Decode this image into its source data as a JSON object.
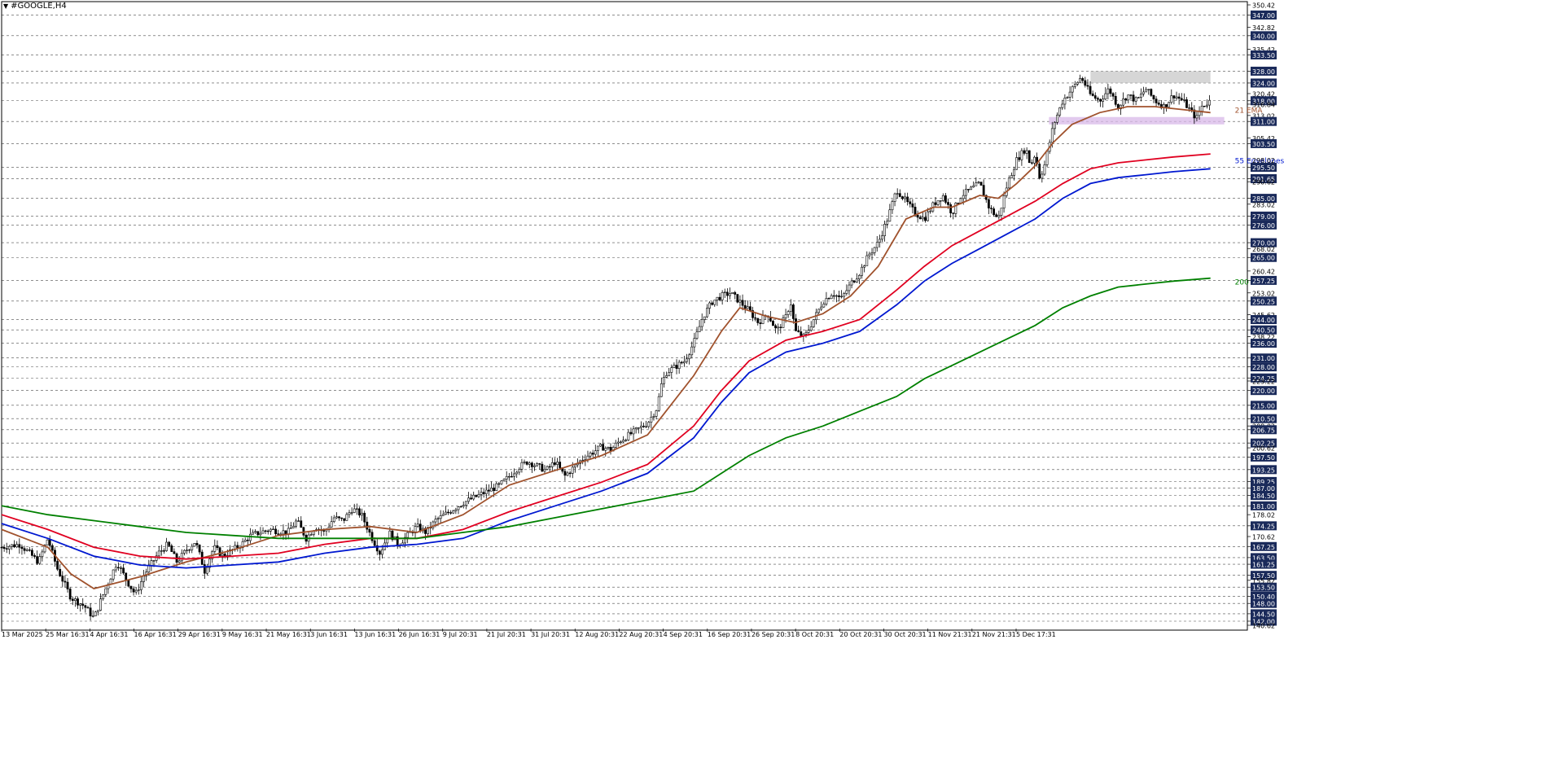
{
  "window": {
    "symbol_title": "#GOOGLE,H4",
    "menu_icon": "triangle-down-icon"
  },
  "colors": {
    "background": "#ffffff",
    "grid": "#000000",
    "candle": "#000000",
    "ema21": "#a0522d",
    "envelope_upper": "#e00020",
    "envelope_lower": "#0018d0",
    "ema200": "#008000",
    "price_tag_bg": "#1a2a5a",
    "price_tag_text": "#ffffff",
    "resistance_zone": "#c8c8c8",
    "support_zone": "#d8b8e8"
  },
  "chart_data": {
    "type": "candlestick",
    "timeframe": "H4",
    "ylim": [
      140.62,
      350.42
    ],
    "price_scale_labels": [
      "350.42",
      "347.00",
      "342.82",
      "340.00",
      "335.42",
      "333.50",
      "328.00",
      "324.00",
      "320.42",
      "318.00",
      "316.84",
      "313.02",
      "311.00",
      "305.42",
      "303.50",
      "298.02",
      "295.50",
      "291.65",
      "290.62",
      "285.00",
      "283.02",
      "279.00",
      "276.00",
      "270.00",
      "268.02",
      "265.00",
      "260.42",
      "257.25",
      "253.02",
      "250.25",
      "245.62",
      "244.00",
      "240.50",
      "238.22",
      "236.00",
      "231.00",
      "228.00",
      "224.25",
      "223.22",
      "220.00",
      "215.00",
      "210.50",
      "208.02",
      "206.75",
      "202.25",
      "200.62",
      "197.50",
      "193.25",
      "189.25",
      "187.00",
      "184.50",
      "181.00",
      "178.02",
      "174.25",
      "170.62",
      "167.25",
      "163.50",
      "161.25",
      "157.50",
      "155.82",
      "153.50",
      "150.40",
      "148.00",
      "144.50",
      "142.00",
      "140.62"
    ],
    "highlighted_levels": [
      347.0,
      340.0,
      333.5,
      328.0,
      324.0,
      318.0,
      311.0,
      303.5,
      295.5,
      291.65,
      285.0,
      279.0,
      276.0,
      270.0,
      265.0,
      257.25,
      250.25,
      244.0,
      240.5,
      236.0,
      231.0,
      228.0,
      224.25,
      220.0,
      215.0,
      210.5,
      206.75,
      202.25,
      197.5,
      193.25,
      189.25,
      187.0,
      184.5,
      181.0,
      174.25,
      167.25,
      163.5,
      161.25,
      157.5,
      153.5,
      150.4,
      148.0,
      144.5,
      142.0
    ],
    "time_labels": [
      "13 Mar 2025",
      "25 Mar 16:31",
      "4 Apr 16:31",
      "16 Apr 16:31",
      "29 Apr 16:31",
      "9 May 16:31",
      "21 May 16:31",
      "3 Jun 16:31",
      "13 Jun 16:31",
      "26 Jun 16:31",
      "9 Jul 20:31",
      "21 Jul 20:31",
      "31 Jul 20:31",
      "12 Aug 20:31",
      "22 Aug 20:31",
      "4 Sep 20:31",
      "16 Sep 20:31",
      "26 Sep 20:31",
      "8 Oct 20:31",
      "20 Oct 20:31",
      "30 Oct 20:31",
      "11 Nov 21:31",
      "21 Nov 21:31",
      "5 Dec 17:31"
    ],
    "close_path": [
      [
        0,
        167
      ],
      [
        4,
        168
      ],
      [
        8,
        162
      ],
      [
        10,
        170
      ],
      [
        12,
        160
      ],
      [
        15,
        150
      ],
      [
        18,
        147
      ],
      [
        20,
        143
      ],
      [
        22,
        151
      ],
      [
        25,
        162
      ],
      [
        27,
        156
      ],
      [
        29,
        151
      ],
      [
        31,
        158
      ],
      [
        34,
        165
      ],
      [
        36,
        168
      ],
      [
        38,
        162
      ],
      [
        40,
        166
      ],
      [
        42,
        169
      ],
      [
        44,
        159
      ],
      [
        46,
        167
      ],
      [
        48,
        164
      ],
      [
        52,
        168
      ],
      [
        54,
        171
      ],
      [
        58,
        173
      ],
      [
        62,
        172
      ],
      [
        64,
        176
      ],
      [
        66,
        170
      ],
      [
        68,
        174
      ],
      [
        70,
        172
      ],
      [
        72,
        177
      ],
      [
        74,
        176
      ],
      [
        76,
        180
      ],
      [
        78,
        178
      ],
      [
        80,
        171
      ],
      [
        82,
        165
      ],
      [
        84,
        172
      ],
      [
        86,
        168
      ],
      [
        90,
        174
      ],
      [
        92,
        172
      ],
      [
        94,
        176
      ],
      [
        98,
        180
      ],
      [
        100,
        182
      ],
      [
        104,
        185
      ],
      [
        108,
        188
      ],
      [
        110,
        191
      ],
      [
        112,
        194
      ],
      [
        114,
        196
      ],
      [
        118,
        193
      ],
      [
        120,
        196
      ],
      [
        122,
        191
      ],
      [
        126,
        197
      ],
      [
        128,
        199
      ],
      [
        130,
        201
      ],
      [
        132,
        200
      ],
      [
        134,
        203
      ],
      [
        136,
        205
      ],
      [
        138,
        207
      ],
      [
        140,
        209
      ],
      [
        142,
        214
      ],
      [
        143,
        222
      ],
      [
        144,
        226
      ],
      [
        148,
        230
      ],
      [
        150,
        236
      ],
      [
        152,
        245
      ],
      [
        154,
        250
      ],
      [
        156,
        252
      ],
      [
        158,
        253
      ],
      [
        160,
        250
      ],
      [
        162,
        247
      ],
      [
        164,
        243
      ],
      [
        166,
        246
      ],
      [
        168,
        240
      ],
      [
        170,
        245
      ],
      [
        171,
        250
      ],
      [
        172,
        240
      ],
      [
        174,
        238
      ],
      [
        176,
        244
      ],
      [
        178,
        250
      ],
      [
        180,
        253
      ],
      [
        182,
        251
      ],
      [
        184,
        256
      ],
      [
        186,
        260
      ],
      [
        188,
        266
      ],
      [
        190,
        270
      ],
      [
        192,
        278
      ],
      [
        194,
        288
      ],
      [
        196,
        284
      ],
      [
        198,
        280
      ],
      [
        200,
        278
      ],
      [
        202,
        283
      ],
      [
        204,
        286
      ],
      [
        206,
        280
      ],
      [
        208,
        286
      ],
      [
        210,
        288
      ],
      [
        212,
        290
      ],
      [
        214,
        282
      ],
      [
        216,
        278
      ],
      [
        218,
        290
      ],
      [
        220,
        298
      ],
      [
        222,
        302
      ],
      [
        223,
        296
      ],
      [
        224,
        300
      ],
      [
        225,
        292
      ],
      [
        226,
        296
      ],
      [
        228,
        310
      ],
      [
        230,
        318
      ],
      [
        232,
        322
      ],
      [
        234,
        326
      ],
      [
        236,
        320
      ],
      [
        238,
        318
      ],
      [
        240,
        322
      ],
      [
        242,
        316
      ],
      [
        244,
        320
      ],
      [
        246,
        318
      ],
      [
        248,
        322
      ],
      [
        250,
        318
      ],
      [
        252,
        316
      ],
      [
        254,
        320
      ],
      [
        256,
        318
      ],
      [
        258,
        314
      ],
      [
        259,
        312
      ],
      [
        260,
        316
      ],
      [
        262,
        318
      ]
    ],
    "series": [
      {
        "name": "21 EMA",
        "color": "#a0522d",
        "points": [
          [
            0,
            173
          ],
          [
            10,
            167
          ],
          [
            15,
            158
          ],
          [
            20,
            153
          ],
          [
            25,
            155
          ],
          [
            30,
            157
          ],
          [
            40,
            162
          ],
          [
            50,
            166
          ],
          [
            60,
            171
          ],
          [
            70,
            173
          ],
          [
            80,
            174
          ],
          [
            90,
            172
          ],
          [
            100,
            178
          ],
          [
            110,
            188
          ],
          [
            120,
            193
          ],
          [
            130,
            198
          ],
          [
            140,
            205
          ],
          [
            144,
            213
          ],
          [
            150,
            225
          ],
          [
            156,
            240
          ],
          [
            160,
            248
          ],
          [
            166,
            245
          ],
          [
            172,
            243
          ],
          [
            178,
            246
          ],
          [
            184,
            252
          ],
          [
            190,
            262
          ],
          [
            196,
            278
          ],
          [
            202,
            282
          ],
          [
            206,
            282
          ],
          [
            212,
            286
          ],
          [
            216,
            285
          ],
          [
            220,
            290
          ],
          [
            224,
            296
          ],
          [
            228,
            304
          ],
          [
            232,
            310
          ],
          [
            238,
            314
          ],
          [
            244,
            316
          ],
          [
            250,
            316
          ],
          [
            256,
            315
          ],
          [
            262,
            314
          ]
        ]
      },
      {
        "name": "55 Envelopes (upper)",
        "color": "#e00020",
        "points": [
          [
            0,
            178
          ],
          [
            10,
            173
          ],
          [
            20,
            167
          ],
          [
            30,
            164
          ],
          [
            40,
            163
          ],
          [
            50,
            164
          ],
          [
            60,
            165
          ],
          [
            70,
            168
          ],
          [
            80,
            170
          ],
          [
            90,
            170
          ],
          [
            100,
            173
          ],
          [
            110,
            179
          ],
          [
            120,
            184
          ],
          [
            130,
            189
          ],
          [
            140,
            195
          ],
          [
            150,
            208
          ],
          [
            156,
            220
          ],
          [
            162,
            230
          ],
          [
            170,
            237
          ],
          [
            178,
            240
          ],
          [
            186,
            244
          ],
          [
            194,
            254
          ],
          [
            200,
            262
          ],
          [
            206,
            269
          ],
          [
            212,
            274
          ],
          [
            218,
            279
          ],
          [
            224,
            284
          ],
          [
            230,
            290
          ],
          [
            236,
            295
          ],
          [
            242,
            297
          ],
          [
            248,
            298
          ],
          [
            254,
            299
          ],
          [
            262,
            300
          ]
        ]
      },
      {
        "name": "55 Envelopes (lower)",
        "color": "#0018d0",
        "points": [
          [
            0,
            175
          ],
          [
            10,
            170
          ],
          [
            20,
            164
          ],
          [
            30,
            161
          ],
          [
            40,
            160
          ],
          [
            50,
            161
          ],
          [
            60,
            162
          ],
          [
            70,
            165
          ],
          [
            80,
            167
          ],
          [
            90,
            168
          ],
          [
            100,
            170
          ],
          [
            110,
            176
          ],
          [
            120,
            181
          ],
          [
            130,
            186
          ],
          [
            140,
            192
          ],
          [
            150,
            204
          ],
          [
            156,
            216
          ],
          [
            162,
            226
          ],
          [
            170,
            233
          ],
          [
            178,
            236
          ],
          [
            186,
            240
          ],
          [
            194,
            249
          ],
          [
            200,
            257
          ],
          [
            206,
            263
          ],
          [
            212,
            268
          ],
          [
            218,
            273
          ],
          [
            224,
            278
          ],
          [
            230,
            285
          ],
          [
            236,
            290
          ],
          [
            242,
            292
          ],
          [
            248,
            293
          ],
          [
            254,
            294
          ],
          [
            262,
            295
          ]
        ]
      },
      {
        "name": "200 EMA",
        "color": "#008000",
        "points": [
          [
            0,
            181
          ],
          [
            10,
            178
          ],
          [
            20,
            176
          ],
          [
            30,
            174
          ],
          [
            40,
            172
          ],
          [
            50,
            171
          ],
          [
            60,
            170
          ],
          [
            70,
            170
          ],
          [
            80,
            170
          ],
          [
            90,
            170
          ],
          [
            100,
            172
          ],
          [
            110,
            174
          ],
          [
            120,
            177
          ],
          [
            130,
            180
          ],
          [
            140,
            183
          ],
          [
            150,
            186
          ],
          [
            156,
            192
          ],
          [
            162,
            198
          ],
          [
            170,
            204
          ],
          [
            178,
            208
          ],
          [
            186,
            213
          ],
          [
            194,
            218
          ],
          [
            200,
            224
          ],
          [
            208,
            230
          ],
          [
            216,
            236
          ],
          [
            224,
            242
          ],
          [
            230,
            248
          ],
          [
            236,
            252
          ],
          [
            242,
            255
          ],
          [
            248,
            256
          ],
          [
            254,
            257
          ],
          [
            262,
            258
          ]
        ]
      }
    ],
    "annotations": [
      {
        "text": "21 EMA",
        "color": "#a0522d",
        "x": 262,
        "y": 315
      },
      {
        "text": "55 Envelopes",
        "color": "#0018d0",
        "x": 262,
        "y": 298
      },
      {
        "text": "200 EMA",
        "color": "#008000",
        "x": 262,
        "y": 257
      }
    ],
    "zones": [
      {
        "type": "resistance",
        "y0": 324.0,
        "y1": 328.0,
        "x0": 236,
        "x1": 262
      },
      {
        "type": "support",
        "y0": 310.0,
        "y1": 312.5,
        "x0": 227,
        "x1": 265
      }
    ],
    "grid": "horizontal-dashed"
  }
}
